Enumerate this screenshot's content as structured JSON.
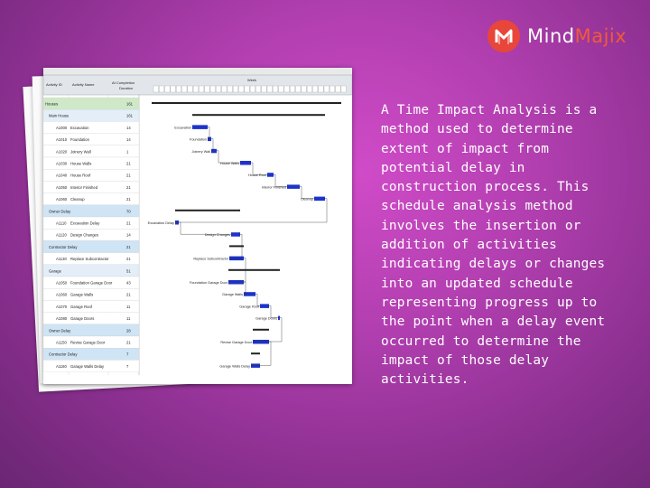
{
  "logo": {
    "word_a": "Mind",
    "word_b": "Majix",
    "icon": "mindmajix-logo-icon"
  },
  "description": "A Time Impact Analysis is a method used to determine extent of impact from potential delay in construction process. This schedule analysis method involves the insertion or addition of activities indicating delays or changes into an updated schedule representing progress up to the point when a delay event occurred to determine the impact of those delay activities.",
  "gantt": {
    "headers": {
      "activity_id": "Activity ID",
      "activity_name": "Activity Name",
      "at_completion": "At Completion",
      "duration": "Duration",
      "week": "Week"
    },
    "rows": [
      {
        "id": "Houses",
        "name": "",
        "dur": "161",
        "kind": "group"
      },
      {
        "id": "Main House",
        "name": "",
        "dur": "161",
        "kind": "sub"
      },
      {
        "id": "A1000",
        "name": "Excavation",
        "dur": "14",
        "kind": "act"
      },
      {
        "id": "A1010",
        "name": "Foundation",
        "dur": "14",
        "kind": "act"
      },
      {
        "id": "A1020",
        "name": "Joinery Wall",
        "dur": "1",
        "kind": "act"
      },
      {
        "id": "A1030",
        "name": "House Walls",
        "dur": "21",
        "kind": "act"
      },
      {
        "id": "A1040",
        "name": "House Roof",
        "dur": "21",
        "kind": "act"
      },
      {
        "id": "A1050",
        "name": "Interior Finished",
        "dur": "21",
        "kind": "act"
      },
      {
        "id": "A1060",
        "name": "Cleanup",
        "dur": "21",
        "kind": "act"
      },
      {
        "id": "Owner Delay",
        "name": "",
        "dur": "70",
        "kind": "sub"
      },
      {
        "id": "A1110",
        "name": "Excavation Delay",
        "dur": "21",
        "kind": "act"
      },
      {
        "id": "A1120",
        "name": "Design Changes",
        "dur": "14",
        "kind": "act"
      },
      {
        "id": "Contractor Delay",
        "name": "",
        "dur": "21",
        "kind": "sub"
      },
      {
        "id": "A1130",
        "name": "Replace Subcontractor",
        "dur": "21",
        "kind": "act"
      },
      {
        "id": "Garage",
        "name": "",
        "dur": "51",
        "kind": "sub"
      },
      {
        "id": "A1050",
        "name": "Foundation Garage Door",
        "dur": "43",
        "kind": "act"
      },
      {
        "id": "A1060",
        "name": "Garage Walls",
        "dur": "21",
        "kind": "act"
      },
      {
        "id": "A1070",
        "name": "Garage Roof",
        "dur": "11",
        "kind": "act"
      },
      {
        "id": "A1080",
        "name": "Garage Doors",
        "dur": "11",
        "kind": "act"
      },
      {
        "id": "Owner Delay",
        "name": "",
        "dur": "28",
        "kind": "sub"
      },
      {
        "id": "A1150",
        "name": "Revise Garage Door",
        "dur": "21",
        "kind": "act"
      },
      {
        "id": "Contractor Delay",
        "name": "",
        "dur": "7",
        "kind": "sub"
      },
      {
        "id": "A1160",
        "name": "Garage Walls Delay",
        "dur": "7",
        "kind": "act"
      }
    ],
    "bar_labels": [
      "Excavation",
      "Foundation",
      "Joinery Wall",
      "House Walls",
      "House Roof",
      "Interior Finished",
      "Cleanup",
      "Excavation Delay",
      "Design Changes",
      "Replace Subcontractor",
      "Foundation Garage Door",
      "Garage Walls",
      "Garage Roof",
      "Garage Doors",
      "Revise Garage Door",
      "Garage Walls Delay"
    ]
  }
}
